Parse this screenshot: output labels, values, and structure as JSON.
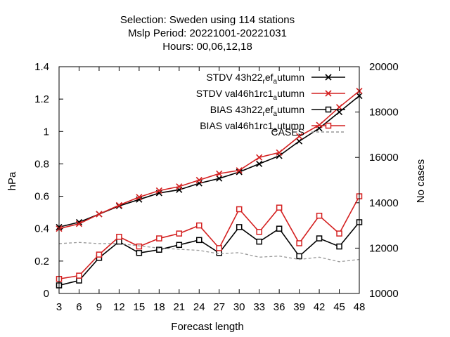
{
  "chart_data": {
    "type": "line",
    "title_lines": [
      "Selection: Sweden using   114 stations",
      "Mslp   Period: 20221001-20221031",
      "Hours:  00,06,12,18"
    ],
    "xlabel": "Forecast length",
    "ylabel": "hPa",
    "y2label": "No cases",
    "x": [
      3,
      6,
      9,
      12,
      15,
      18,
      21,
      24,
      27,
      30,
      33,
      36,
      39,
      42,
      45,
      48
    ],
    "xlim": [
      3,
      48
    ],
    "ylim": [
      0,
      1.4
    ],
    "y2lim": [
      10000,
      20000
    ],
    "yticks": [
      "0",
      "0.2",
      "0.4",
      "0.6",
      "0.8",
      "1",
      "1.2",
      "1.4"
    ],
    "y2ticks": [
      "10000",
      "12000",
      "14000",
      "16000",
      "18000",
      "20000"
    ],
    "legend_position": "top-right",
    "series": [
      {
        "name": "STDV 43h22_ref_autumn",
        "legend_main": "STDV 43h22",
        "legend_sub1": "r",
        "legend_mid": "ef",
        "legend_sub2": "a",
        "legend_tail": "utumn",
        "color": "#000000",
        "marker": "x",
        "values": [
          0.41,
          0.44,
          0.49,
          0.54,
          0.58,
          0.62,
          0.64,
          0.68,
          0.71,
          0.75,
          0.8,
          0.85,
          0.94,
          1.02,
          1.12,
          1.22
        ]
      },
      {
        "name": "STDV val46h1rc1_autumn",
        "legend_main": "STDV val46h1rc1",
        "legend_sub2": "a",
        "legend_tail": "utumn",
        "color": "#d42020",
        "marker": "x",
        "values": [
          0.4,
          0.43,
          0.49,
          0.545,
          0.595,
          0.635,
          0.66,
          0.7,
          0.74,
          0.76,
          0.84,
          0.87,
          0.97,
          1.04,
          1.15,
          1.25
        ]
      },
      {
        "name": "BIAS 43h22_ref_autumn",
        "legend_main": "BIAS 43h22",
        "legend_sub1": "r",
        "legend_mid": "ef",
        "legend_sub2": "a",
        "legend_tail": "utumn",
        "color": "#000000",
        "marker": "square",
        "values": [
          0.05,
          0.08,
          0.22,
          0.32,
          0.25,
          0.27,
          0.3,
          0.33,
          0.25,
          0.41,
          0.32,
          0.4,
          0.23,
          0.34,
          0.29,
          0.44
        ]
      },
      {
        "name": "BIAS val46h1rc1_autumn",
        "legend_main": "BIAS val46h1rc1",
        "legend_sub2": "a",
        "legend_tail": "utumn",
        "color": "#d42020",
        "marker": "square",
        "values": [
          0.09,
          0.11,
          0.24,
          0.35,
          0.29,
          0.34,
          0.37,
          0.42,
          0.28,
          0.52,
          0.38,
          0.53,
          0.31,
          0.48,
          0.37,
          0.6
        ]
      },
      {
        "name": "CASES",
        "legend_main": "CASES",
        "color": "#999999",
        "marker": "none",
        "axis": "y2",
        "dashed": true,
        "values": [
          12200,
          12250,
          12200,
          12200,
          12100,
          12000,
          11950,
          11900,
          11750,
          11800,
          11600,
          11650,
          11500,
          11600,
          11400,
          11500
        ]
      }
    ]
  }
}
